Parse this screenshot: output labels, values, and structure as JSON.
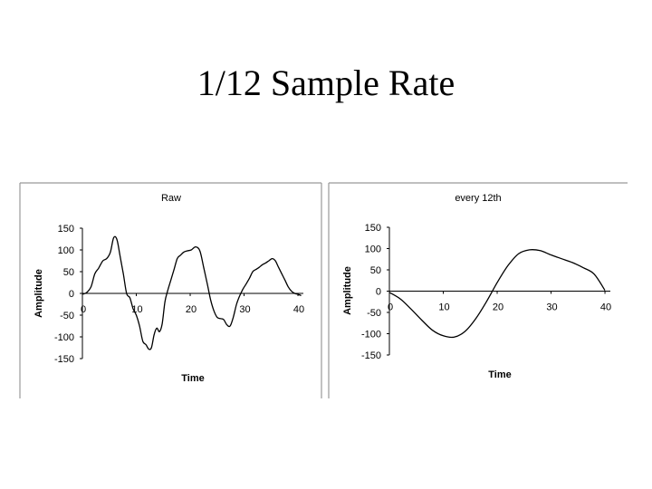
{
  "slide": {
    "title": "1/12 Sample Rate"
  },
  "chart_data": [
    {
      "type": "line",
      "title": "Raw",
      "xlabel": "Time",
      "ylabel": "Amplitude",
      "xlim": [
        0,
        41
      ],
      "ylim": [
        -150,
        150
      ],
      "x_ticks": [
        "0",
        "10",
        "20",
        "30",
        "40"
      ],
      "y_ticks": [
        "150",
        "100",
        "50",
        "0",
        "-50",
        "-100",
        "-150"
      ],
      "grid": false,
      "colors": {
        "line": "#000000",
        "axis": "#000000",
        "frame": "#999999"
      },
      "series": [
        {
          "x": [
            0,
            0.8,
            1.6,
            2.3,
            3.0,
            3.8,
            4.5,
            5.2,
            5.8,
            6.4,
            7.0,
            7.6,
            8.2,
            8.8,
            9.4,
            10.0,
            10.6,
            11.2,
            11.8,
            12.3,
            12.8,
            13.3,
            13.8,
            14.3,
            14.8,
            15.3,
            15.8,
            16.4,
            17.0,
            17.6,
            18.2,
            18.8,
            19.5,
            20.2,
            21.0,
            21.8,
            22.5,
            23.2,
            23.8,
            24.4,
            25.0,
            25.6,
            26.2,
            26.8,
            27.4,
            28.0,
            28.6,
            29.2,
            29.8,
            30.4,
            31.0,
            31.6,
            32.2,
            32.8,
            33.4,
            34.0,
            34.6,
            35.2,
            35.8,
            36.4,
            37.0,
            37.6,
            38.2,
            38.8,
            39.4,
            40.0,
            40.6
          ],
          "y": [
            -2,
            2,
            15,
            45,
            58,
            75,
            80,
            95,
            128,
            124,
            85,
            45,
            0,
            -10,
            -35,
            -50,
            -75,
            -110,
            -118,
            -128,
            -125,
            -95,
            -80,
            -88,
            -70,
            -20,
            5,
            30,
            55,
            80,
            88,
            95,
            98,
            100,
            107,
            98,
            60,
            20,
            -15,
            -40,
            -55,
            -58,
            -60,
            -72,
            -75,
            -55,
            -25,
            -5,
            10,
            22,
            35,
            50,
            55,
            60,
            66,
            70,
            75,
            80,
            75,
            60,
            45,
            30,
            15,
            5,
            0,
            -2,
            -5
          ]
        }
      ]
    },
    {
      "type": "line",
      "title": "every 12th",
      "xlabel": "Time",
      "ylabel": "Amplitude",
      "xlim": [
        0,
        41
      ],
      "ylim": [
        -150,
        150
      ],
      "x_ticks": [
        "0",
        "10",
        "20",
        "30",
        "40"
      ],
      "y_ticks": [
        "150",
        "100",
        "50",
        "0",
        "-50",
        "-100",
        "-150"
      ],
      "grid": false,
      "colors": {
        "line": "#000000",
        "axis": "#000000",
        "frame": "#999999"
      },
      "series": [
        {
          "x": [
            0,
            2,
            4,
            6,
            8,
            10,
            12,
            14,
            16,
            18,
            20,
            22,
            24,
            26,
            28,
            30,
            32,
            34,
            36,
            38,
            40
          ],
          "y": [
            -3,
            -18,
            -42,
            -68,
            -92,
            -105,
            -108,
            -95,
            -65,
            -25,
            20,
            60,
            88,
            97,
            95,
            85,
            76,
            67,
            55,
            40,
            2
          ]
        }
      ]
    }
  ]
}
